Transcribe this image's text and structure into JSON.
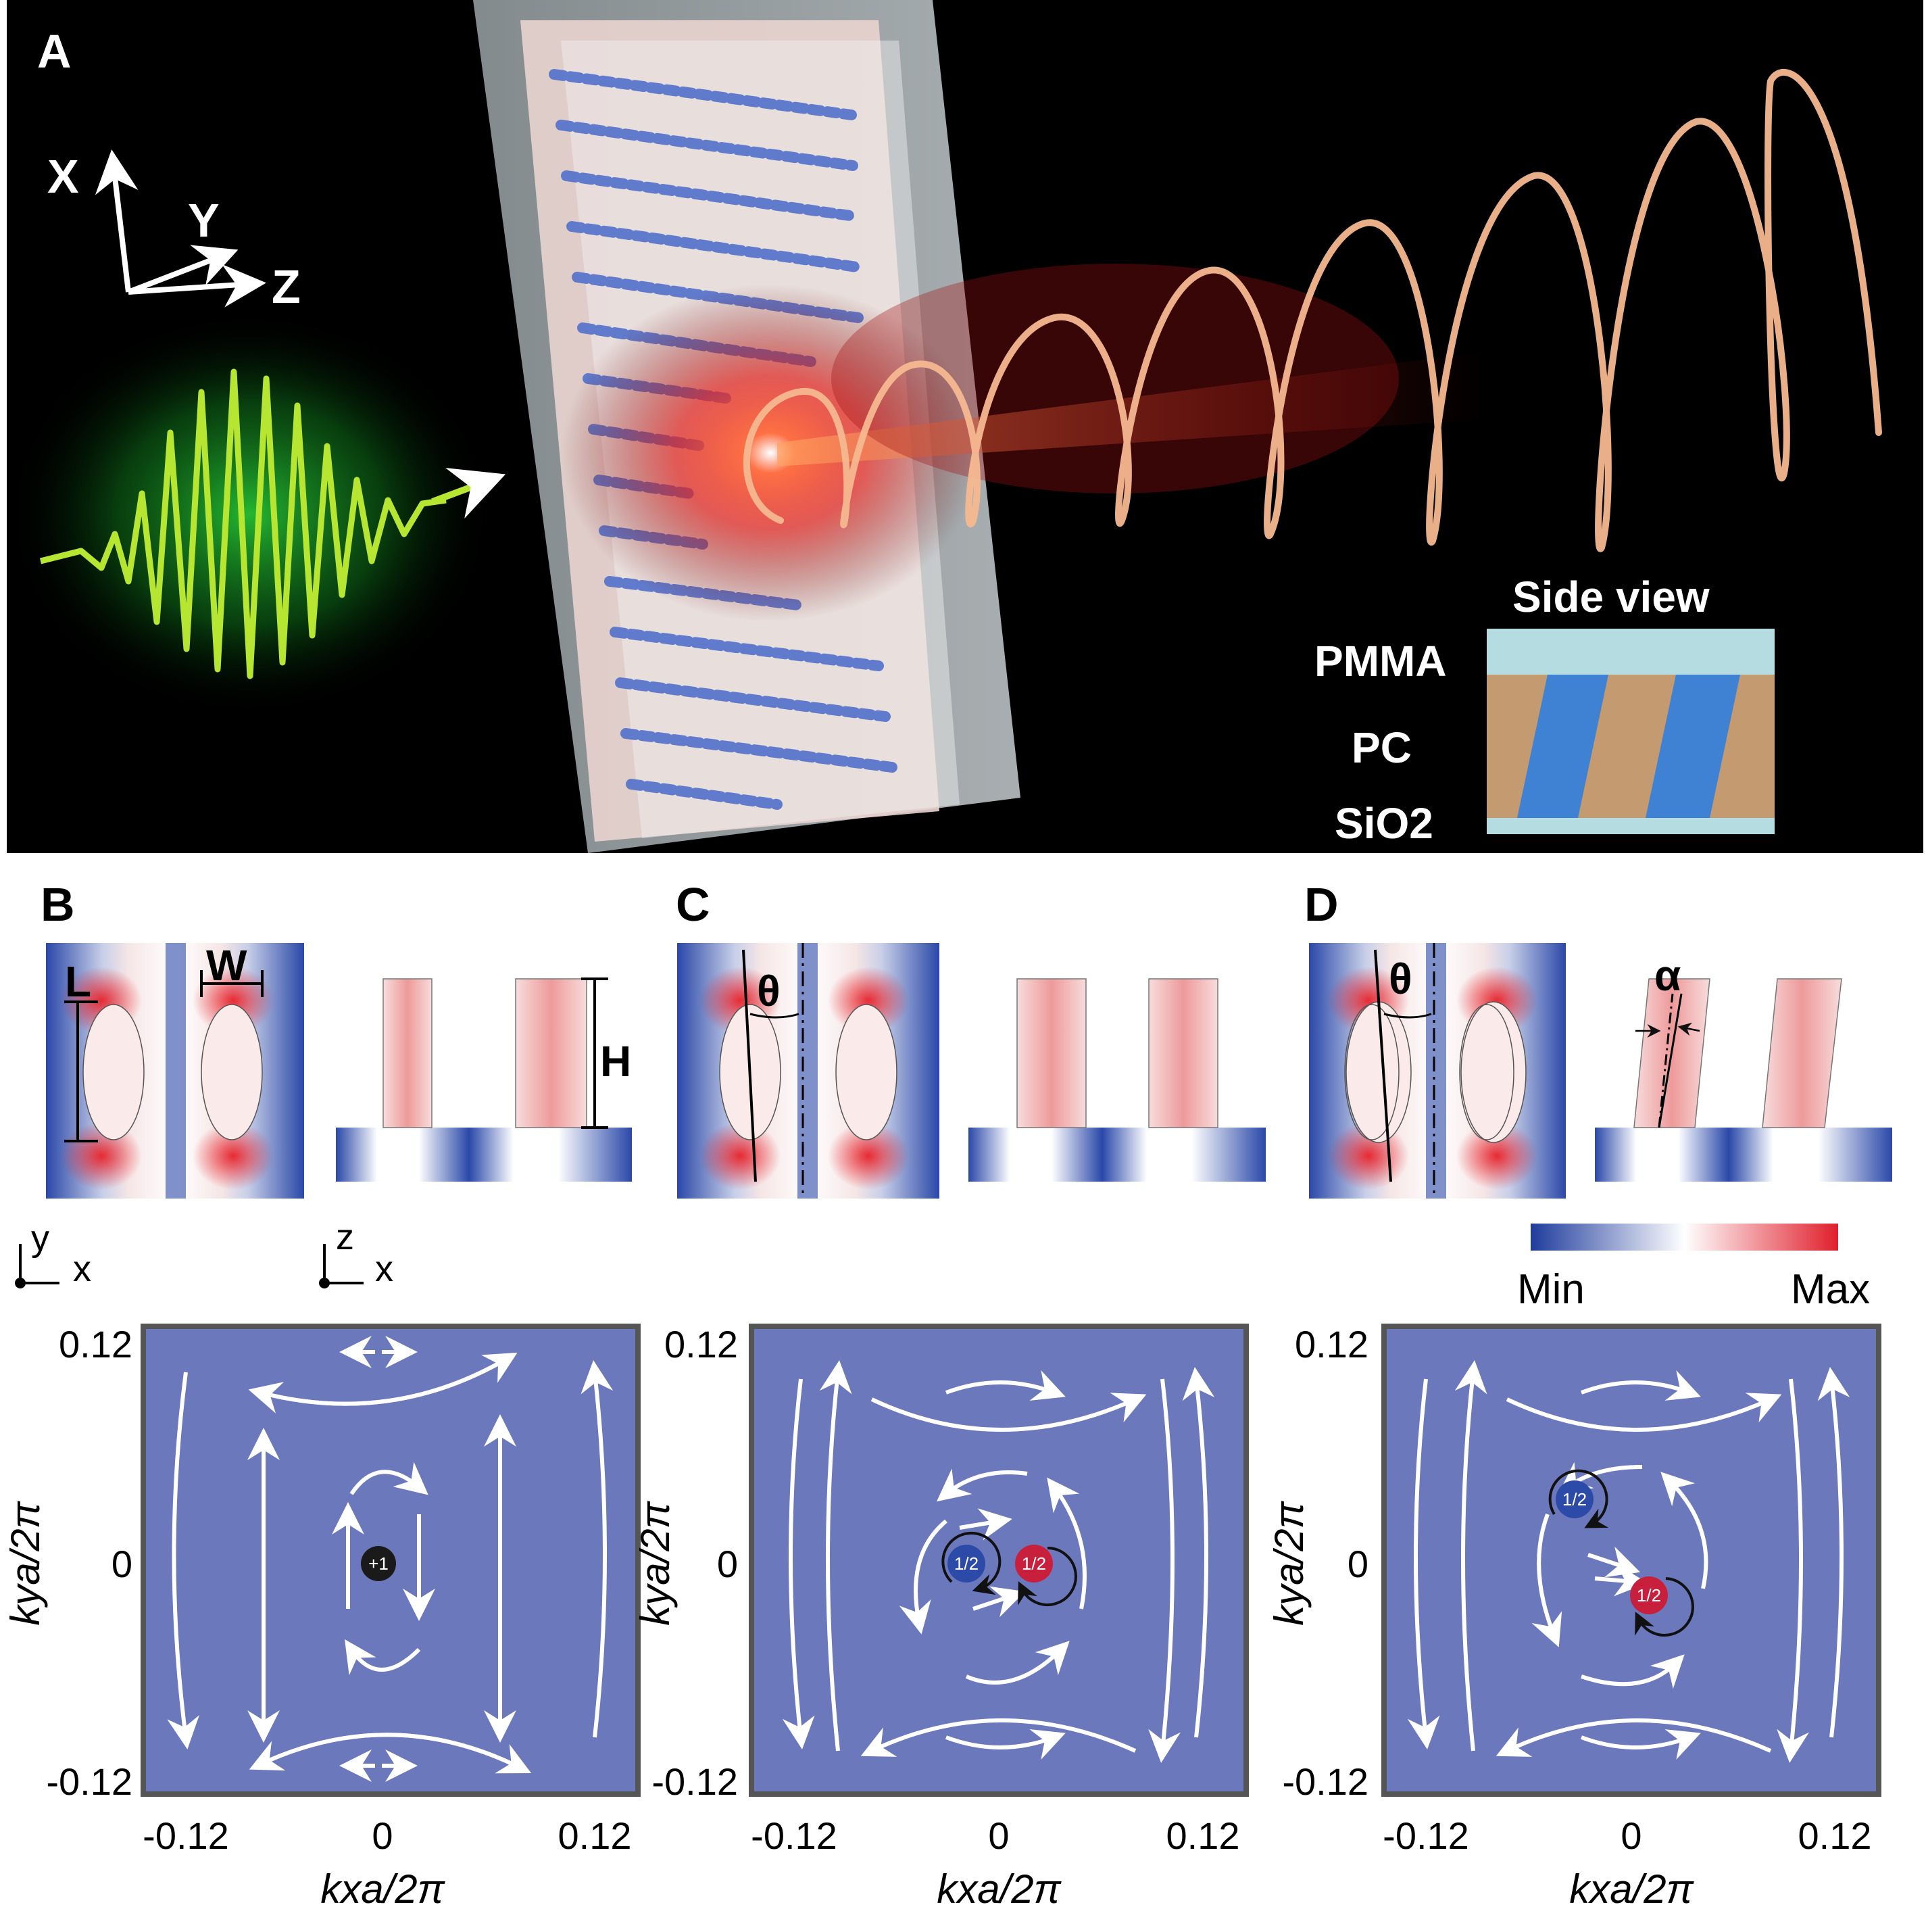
{
  "panel_a": {
    "label": "A",
    "axes": {
      "x": "X",
      "y": "Y",
      "z": "Z"
    },
    "inset": {
      "title": "Side view",
      "layers": [
        "PMMA",
        "PC",
        "SiO2"
      ]
    }
  },
  "panel_b": {
    "label": "B",
    "dims": {
      "length": "L",
      "width": "W",
      "height": "H"
    },
    "axes_top": {
      "vertical": "y",
      "horizontal": "x"
    },
    "axes_side": {
      "vertical": "z",
      "horizontal": "x"
    },
    "charge": "+1"
  },
  "panel_c": {
    "label": "C",
    "angle": "θ",
    "charges": [
      "1/2",
      "1/2"
    ]
  },
  "panel_d": {
    "label": "D",
    "angle": "θ",
    "tilt": "α",
    "charges": [
      "1/2",
      "1/2"
    ]
  },
  "colorbar": {
    "min": "Min",
    "max": "Max",
    "colors": {
      "min": "#1f3c9c",
      "mid": "#ffffff",
      "max": "#e0202c"
    }
  },
  "polarization_plots": {
    "xlabel": "kxa/2π",
    "ylabel": "kya/2π",
    "xticks": [
      "-0.12",
      "0",
      "0.12"
    ],
    "yticks": [
      "0.12",
      "0",
      "-0.12"
    ],
    "ylim": [
      -0.12,
      0.12
    ],
    "xlim": [
      -0.12,
      0.12
    ],
    "background": "#6c78bc",
    "charge_colors": {
      "integer": "#1a1a1a",
      "blue": "#2c4aa8",
      "red": "#c8203c"
    }
  }
}
